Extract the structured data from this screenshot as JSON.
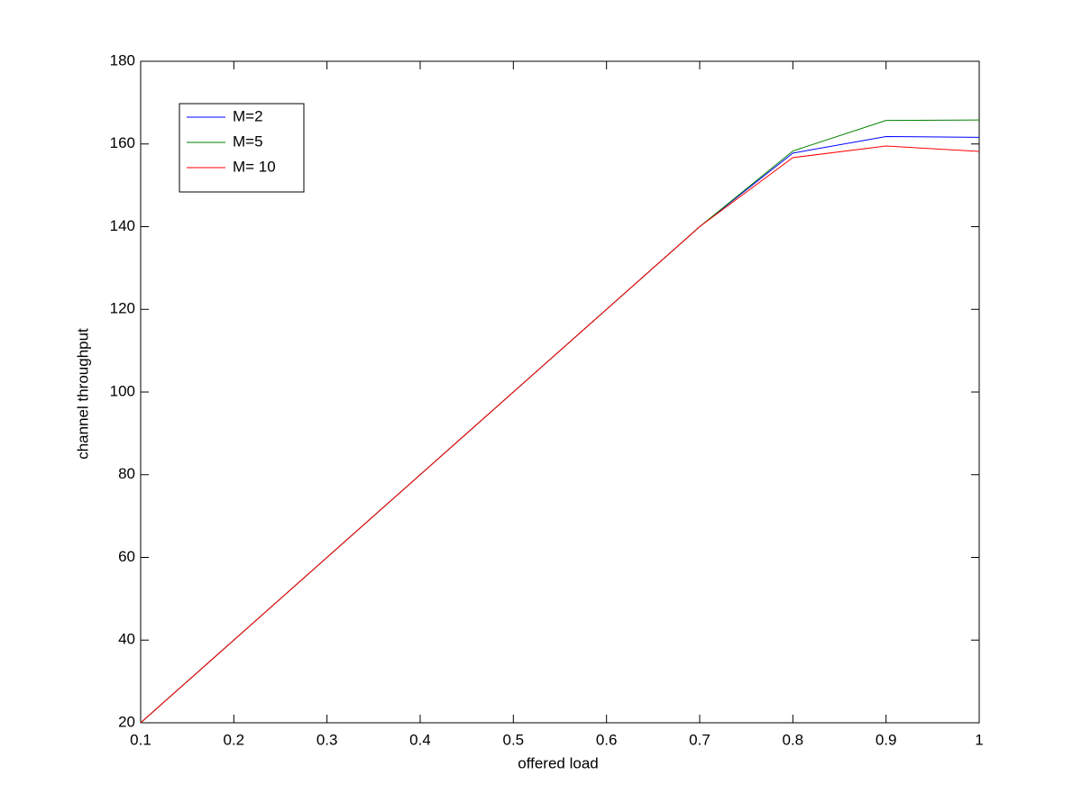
{
  "chart_data": {
    "type": "line",
    "x_label": "offered load",
    "y_label": "channel throughput",
    "x": [
      0.1,
      0.2,
      0.3,
      0.4,
      0.5,
      0.6,
      0.7,
      0.8,
      0.9,
      1
    ],
    "series": [
      {
        "name": "M=2",
        "color": "#0000ff",
        "values": [
          20,
          40,
          60,
          80,
          100,
          120,
          140,
          157.8,
          161.8,
          161.6
        ]
      },
      {
        "name": "M=5",
        "color": "#008000",
        "values": [
          20,
          40,
          60,
          80,
          100,
          120,
          140,
          158.3,
          165.7,
          165.8
        ]
      },
      {
        "name": "M= 10",
        "color": "#ff0000",
        "values": [
          20,
          40,
          60,
          80,
          100,
          120,
          140,
          156.7,
          159.5,
          158.2
        ]
      }
    ],
    "xlim": [
      0.1,
      1
    ],
    "ylim": [
      20,
      180
    ],
    "xticks": [
      0.1,
      0.2,
      0.3,
      0.4,
      0.5,
      0.6,
      0.7,
      0.8,
      0.9,
      1
    ],
    "yticks": [
      20,
      40,
      60,
      80,
      100,
      120,
      140,
      160,
      180
    ],
    "grid": false,
    "legend": "upper-left"
  }
}
